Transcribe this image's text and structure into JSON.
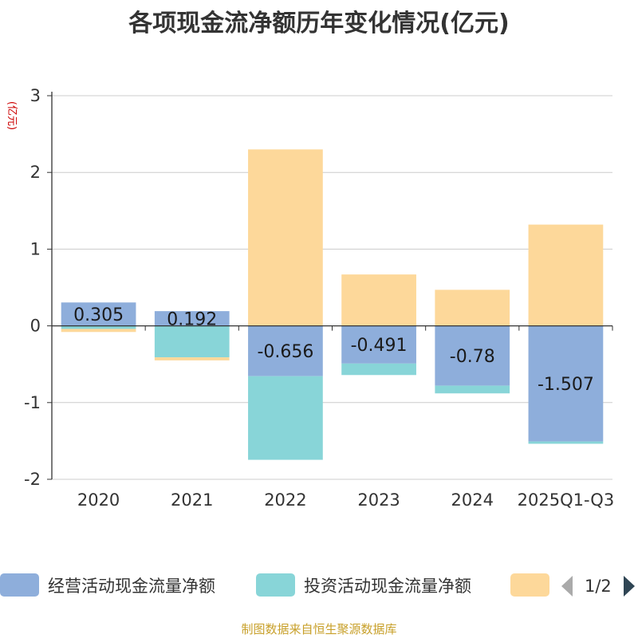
{
  "chart_data": {
    "type": "bar",
    "title": "各项现金流净额历年变化情况(亿元)",
    "ylabel": "(亿元)",
    "categories": [
      "2020",
      "2021",
      "2022",
      "2023",
      "2024",
      "2025Q1-Q3"
    ],
    "ylim": [
      -2,
      3
    ],
    "yticks": [
      "3",
      "2",
      "1",
      "0",
      "-1",
      "-2"
    ],
    "stacked": true,
    "series": [
      {
        "name": "经营活动现金流量净额",
        "values": [
          0.305,
          0.192,
          -0.656,
          -0.491,
          -0.78,
          -1.507
        ],
        "color": "#8eaedb"
      },
      {
        "name": "投资活动现金流量净额",
        "values": [
          -0.04,
          -0.41,
          -1.09,
          -0.15,
          -0.1,
          -0.03
        ],
        "color": "#88d5d8"
      },
      {
        "name": "",
        "values": [
          -0.04,
          -0.04,
          2.3,
          0.67,
          0.47,
          1.32
        ],
        "color": "#fdd89a"
      }
    ],
    "data_labels": [
      "0.305",
      "0.192",
      "-0.656",
      "-0.491",
      "-0.78",
      "-1.507"
    ],
    "legend_page": "1/2"
  },
  "footer": "制图数据来自恒生聚源数据库"
}
